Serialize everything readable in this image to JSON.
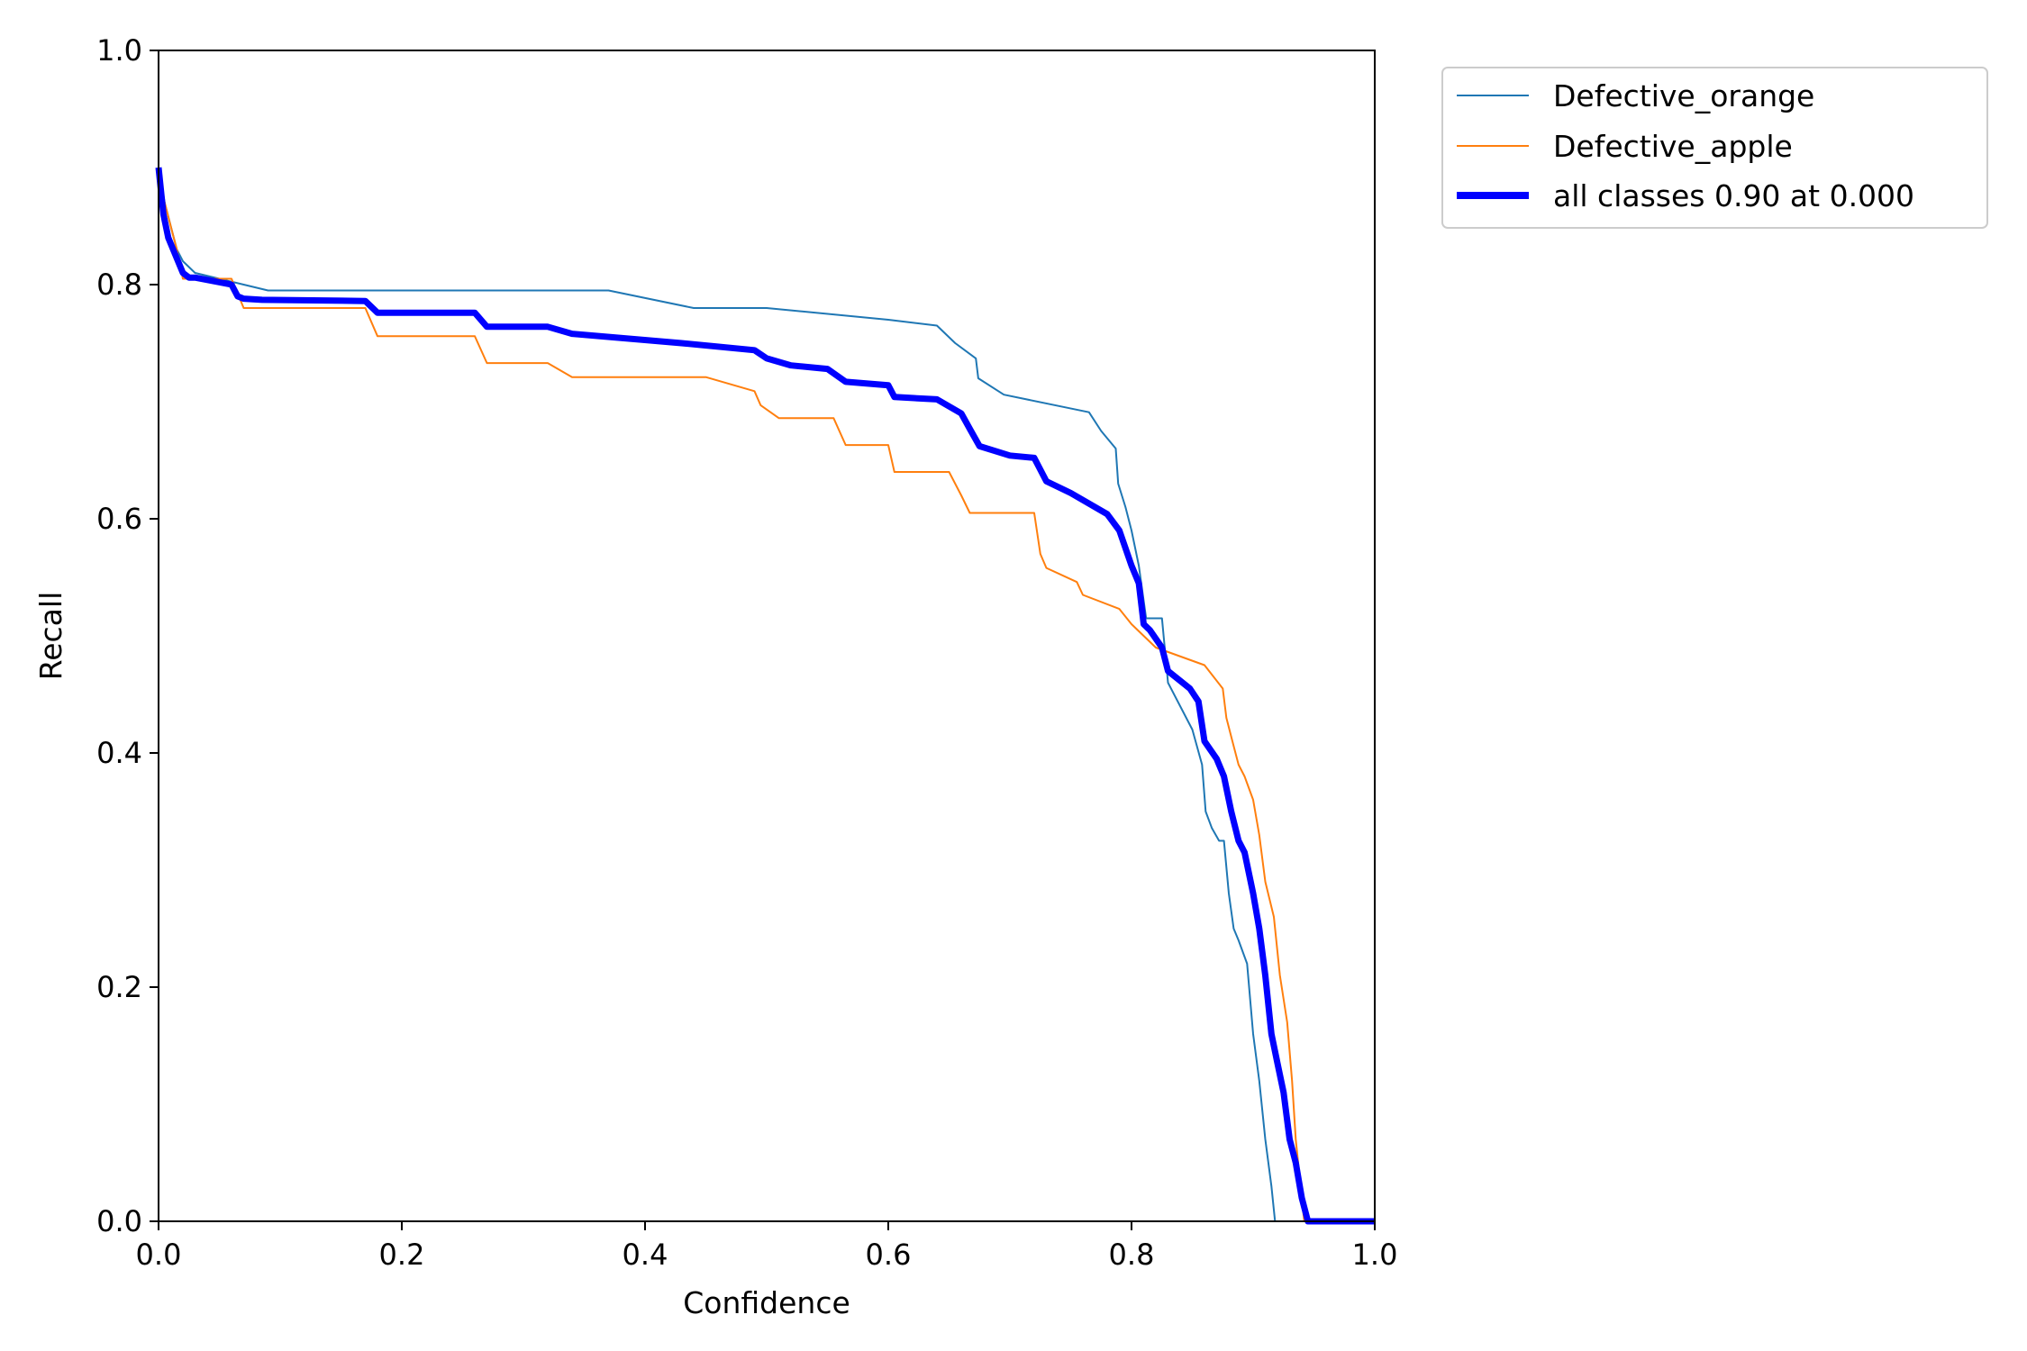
{
  "chart_data": {
    "type": "line",
    "title": "",
    "xlabel": "Confidence",
    "ylabel": "Recall",
    "xlim": [
      0,
      1
    ],
    "ylim": [
      0,
      1
    ],
    "xticks": [
      "0.0",
      "0.2",
      "0.4",
      "0.6",
      "0.8",
      "1.0"
    ],
    "yticks": [
      "0.0",
      "0.2",
      "0.4",
      "0.6",
      "0.8",
      "1.0"
    ],
    "grid": false,
    "legend_position": "outside-top-right",
    "series": [
      {
        "name": "Defective_orange",
        "color": "#1f77b4",
        "x": [
          0.0,
          0.005,
          0.01,
          0.015,
          0.02,
          0.03,
          0.05,
          0.07,
          0.09,
          0.2,
          0.3,
          0.37,
          0.44,
          0.5,
          0.6,
          0.64,
          0.655,
          0.672,
          0.674,
          0.695,
          0.765,
          0.775,
          0.787,
          0.789,
          0.795,
          0.8,
          0.806,
          0.81,
          0.812,
          0.825,
          0.83,
          0.85,
          0.858,
          0.861,
          0.866,
          0.872,
          0.876,
          0.88,
          0.884,
          0.888,
          0.895,
          0.9,
          0.905,
          0.91,
          0.915,
          0.918,
          1.0
        ],
        "y": [
          0.9,
          0.87,
          0.85,
          0.83,
          0.82,
          0.81,
          0.805,
          0.8,
          0.795,
          0.795,
          0.795,
          0.795,
          0.78,
          0.78,
          0.77,
          0.765,
          0.75,
          0.737,
          0.72,
          0.706,
          0.691,
          0.675,
          0.66,
          0.63,
          0.61,
          0.59,
          0.56,
          0.53,
          0.515,
          0.515,
          0.46,
          0.42,
          0.39,
          0.35,
          0.336,
          0.325,
          0.325,
          0.28,
          0.25,
          0.24,
          0.22,
          0.16,
          0.12,
          0.07,
          0.03,
          0.0,
          0.0
        ]
      },
      {
        "name": "Defective_apple",
        "color": "#ff7f0e",
        "x": [
          0.0,
          0.005,
          0.01,
          0.015,
          0.02,
          0.06,
          0.07,
          0.17,
          0.18,
          0.19,
          0.26,
          0.27,
          0.32,
          0.34,
          0.45,
          0.49,
          0.495,
          0.51,
          0.555,
          0.565,
          0.6,
          0.605,
          0.65,
          0.66,
          0.667,
          0.72,
          0.725,
          0.73,
          0.755,
          0.76,
          0.79,
          0.8,
          0.81,
          0.82,
          0.86,
          0.875,
          0.878,
          0.883,
          0.888,
          0.893,
          0.9,
          0.905,
          0.91,
          0.917,
          0.922,
          0.928,
          0.932,
          0.935,
          0.938,
          0.942,
          1.0
        ],
        "y": [
          0.89,
          0.87,
          0.85,
          0.83,
          0.805,
          0.805,
          0.78,
          0.78,
          0.756,
          0.756,
          0.756,
          0.733,
          0.733,
          0.721,
          0.721,
          0.709,
          0.697,
          0.686,
          0.686,
          0.663,
          0.663,
          0.64,
          0.64,
          0.62,
          0.605,
          0.605,
          0.57,
          0.558,
          0.546,
          0.535,
          0.523,
          0.51,
          0.5,
          0.49,
          0.475,
          0.455,
          0.43,
          0.41,
          0.39,
          0.38,
          0.36,
          0.33,
          0.29,
          0.26,
          0.21,
          0.17,
          0.12,
          0.07,
          0.04,
          0.0,
          0.0
        ]
      },
      {
        "name": "all classes 0.90 at 0.000",
        "color": "#0000ff",
        "x": [
          0.0,
          0.004,
          0.008,
          0.012,
          0.016,
          0.02,
          0.025,
          0.03,
          0.06,
          0.065,
          0.07,
          0.085,
          0.17,
          0.18,
          0.26,
          0.27,
          0.32,
          0.34,
          0.43,
          0.49,
          0.5,
          0.52,
          0.55,
          0.565,
          0.6,
          0.605,
          0.64,
          0.66,
          0.668,
          0.675,
          0.7,
          0.72,
          0.73,
          0.75,
          0.78,
          0.79,
          0.8,
          0.806,
          0.81,
          0.815,
          0.825,
          0.83,
          0.848,
          0.855,
          0.86,
          0.87,
          0.876,
          0.882,
          0.888,
          0.893,
          0.9,
          0.905,
          0.91,
          0.915,
          0.92,
          0.925,
          0.93,
          0.935,
          0.94,
          0.945,
          1.0
        ],
        "y": [
          0.9,
          0.86,
          0.84,
          0.83,
          0.82,
          0.81,
          0.806,
          0.806,
          0.8,
          0.79,
          0.788,
          0.787,
          0.786,
          0.776,
          0.776,
          0.764,
          0.764,
          0.758,
          0.75,
          0.744,
          0.737,
          0.731,
          0.728,
          0.717,
          0.714,
          0.704,
          0.702,
          0.69,
          0.675,
          0.662,
          0.654,
          0.652,
          0.632,
          0.622,
          0.604,
          0.59,
          0.56,
          0.545,
          0.51,
          0.505,
          0.49,
          0.47,
          0.455,
          0.444,
          0.41,
          0.395,
          0.38,
          0.35,
          0.325,
          0.315,
          0.28,
          0.25,
          0.21,
          0.16,
          0.135,
          0.11,
          0.07,
          0.05,
          0.02,
          0.0,
          0.0
        ]
      }
    ]
  }
}
